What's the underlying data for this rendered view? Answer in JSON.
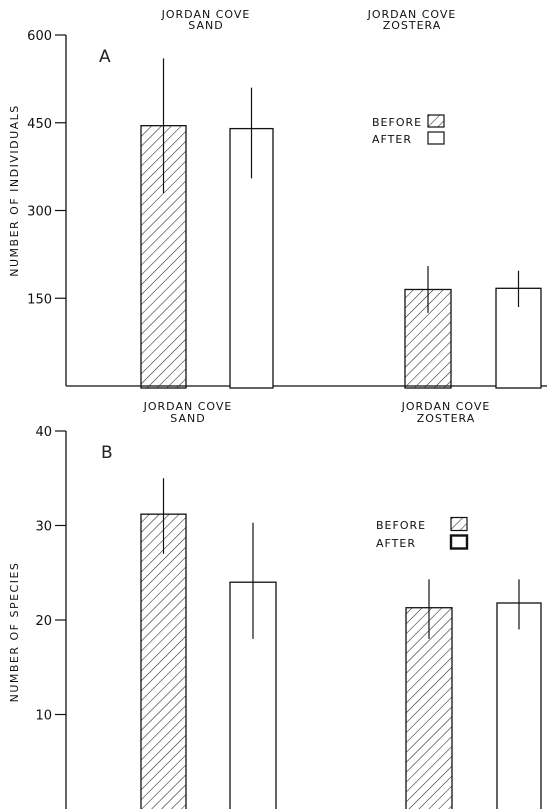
{
  "chart_data": [
    {
      "type": "bar",
      "panel_label": "A",
      "ylabel": "NUMBER OF INDIVIDUALS",
      "ylim": [
        0,
        600
      ],
      "yticks": [
        150,
        300,
        450,
        600
      ],
      "groups": [
        {
          "title_lines": [
            "JORDAN COVE",
            "SAND"
          ]
        },
        {
          "title_lines": [
            "JORDAN COVE",
            "ZOSTERA"
          ]
        }
      ],
      "series": [
        {
          "name": "BEFORE",
          "pattern": "hatched",
          "values": [
            445,
            165
          ],
          "error_low": [
            330,
            125
          ],
          "error_high": [
            560,
            205
          ]
        },
        {
          "name": "AFTER",
          "pattern": "open",
          "values": [
            440,
            167
          ],
          "error_low": [
            355,
            135
          ],
          "error_high": [
            510,
            197
          ]
        }
      ],
      "legend": {
        "position": "upper-right"
      }
    },
    {
      "type": "bar",
      "panel_label": "B",
      "ylabel": "NUMBER OF SPECIES",
      "ylim": [
        0,
        40
      ],
      "yticks": [
        10,
        20,
        30,
        40
      ],
      "groups": [
        {
          "title_lines": [
            "JORDAN COVE",
            "SAND"
          ]
        },
        {
          "title_lines": [
            "JORDAN COVE",
            "ZOSTERA"
          ]
        }
      ],
      "series": [
        {
          "name": "BEFORE",
          "pattern": "hatched",
          "values": [
            31.2,
            21.3
          ],
          "error_low": [
            27,
            18
          ],
          "error_high": [
            35,
            24.3
          ]
        },
        {
          "name": "AFTER",
          "pattern": "open",
          "values": [
            24,
            21.8
          ],
          "error_low": [
            18,
            19
          ],
          "error_high": [
            30.3,
            24.3
          ]
        }
      ],
      "legend": {
        "position": "upper-right"
      }
    }
  ]
}
